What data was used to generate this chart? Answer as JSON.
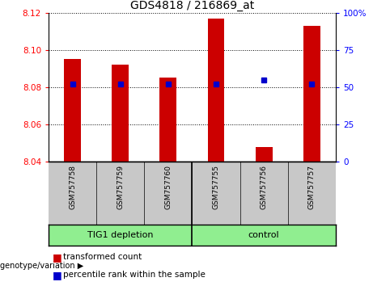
{
  "title": "GDS4818 / 216869_at",
  "samples": [
    "GSM757758",
    "GSM757759",
    "GSM757760",
    "GSM757755",
    "GSM757756",
    "GSM757757"
  ],
  "red_values": [
    8.095,
    8.092,
    8.085,
    8.117,
    8.048,
    8.113
  ],
  "blue_values": [
    52,
    52,
    52,
    52,
    55,
    52
  ],
  "ylim_left": [
    8.04,
    8.12
  ],
  "ylim_right": [
    0,
    100
  ],
  "yticks_left": [
    8.04,
    8.06,
    8.08,
    8.1,
    8.12
  ],
  "yticks_right": [
    0,
    25,
    50,
    75,
    100
  ],
  "red_color": "#cc0000",
  "blue_color": "#0000cc",
  "bar_width": 0.35,
  "bg_xtick": "#c8c8c8",
  "bg_group": "#90ee90",
  "legend_red": "transformed count",
  "legend_blue": "percentile rank within the sample",
  "group_labels": [
    "TIG1 depletion",
    "control"
  ],
  "group_ranges": [
    [
      0,
      3
    ],
    [
      3,
      6
    ]
  ]
}
